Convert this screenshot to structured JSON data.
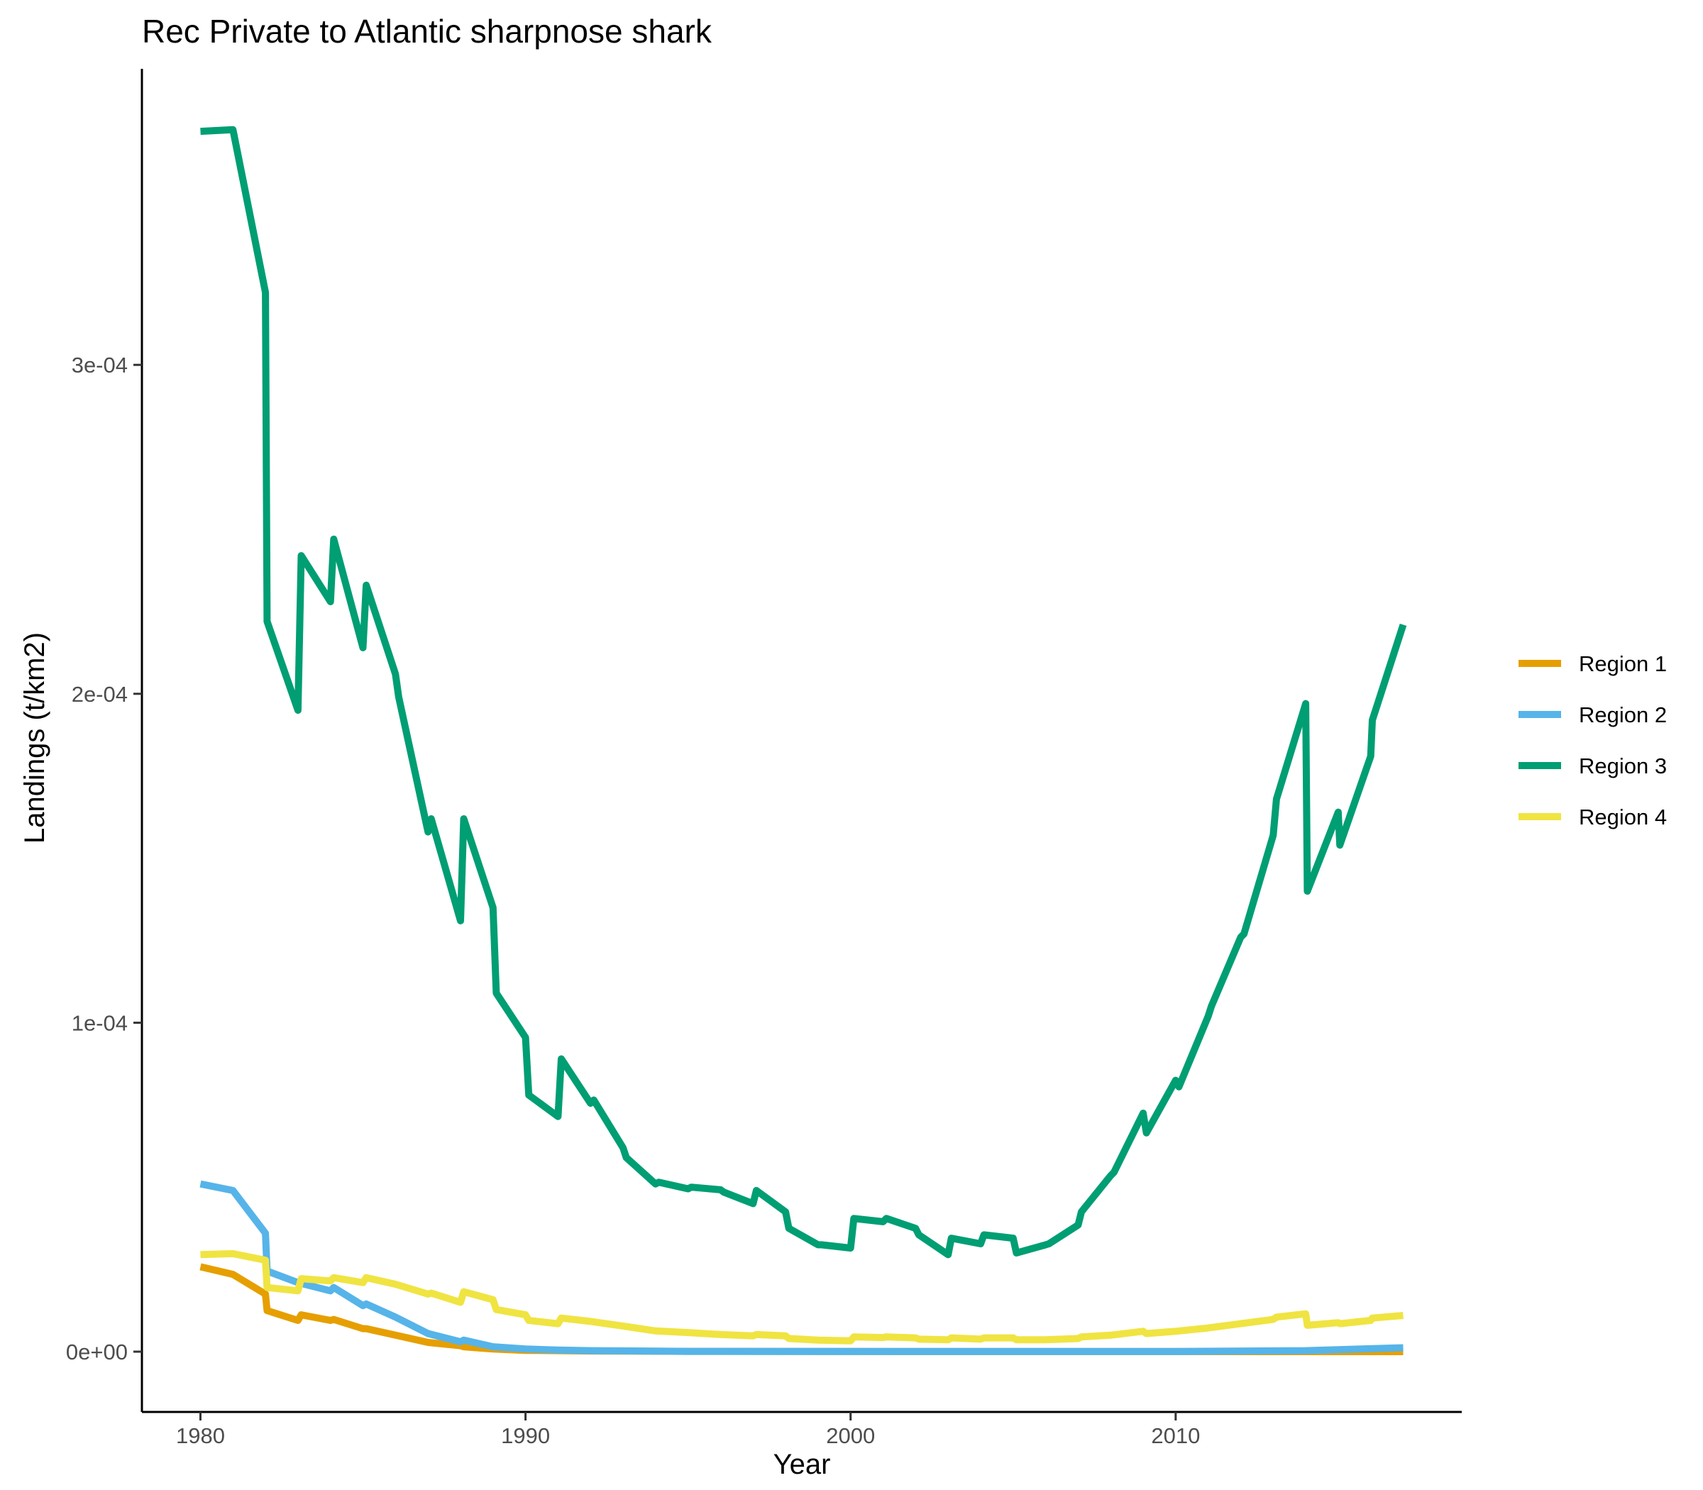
{
  "chart_data": {
    "type": "line",
    "title": "Rec Private to Atlantic sharpnose shark",
    "xlabel": "Year",
    "ylabel": "Landings (t/km2)",
    "xlim": [
      1978.2,
      2018.8
    ],
    "ylim": [
      -1.833e-05,
      0.00039
    ],
    "x_ticks": [
      1980,
      1990,
      2000,
      2010
    ],
    "x_tick_labels": [
      "1980",
      "1990",
      "2000",
      "2010"
    ],
    "y_ticks": [
      0,
      0.0001,
      0.0002,
      0.0003
    ],
    "y_tick_labels": [
      "0e+00",
      "1e-04",
      "2e-04",
      "3e-04"
    ],
    "grid": false,
    "legend_position": "right",
    "series": [
      {
        "name": "Region 1",
        "color": "#E69F00",
        "points": [
          [
            1980,
            2.58e-05
          ],
          [
            1981,
            2.35e-05
          ],
          [
            1982,
            1.75e-05
          ],
          [
            1982.05,
            1.25e-05
          ],
          [
            1983,
            9.5e-06
          ],
          [
            1983.1,
            1.12e-05
          ],
          [
            1984,
            9.5e-06
          ],
          [
            1984.1,
            9.8e-06
          ],
          [
            1985,
            7e-06
          ],
          [
            1985.1,
            7e-06
          ],
          [
            1986,
            5e-06
          ],
          [
            1987,
            2.8e-06
          ],
          [
            1988,
            1.8e-06
          ],
          [
            1988.1,
            1.5e-06
          ],
          [
            1989,
            8e-07
          ],
          [
            1990,
            4e-07
          ],
          [
            1991,
            3e-07
          ],
          [
            1992,
            2e-07
          ],
          [
            1995,
            1e-07
          ],
          [
            2000,
            5e-08
          ],
          [
            2010,
            2e-08
          ],
          [
            2017,
            1e-08
          ]
        ]
      },
      {
        "name": "Region 2",
        "color": "#56B4E9",
        "points": [
          [
            1980,
            5.1e-05
          ],
          [
            1981,
            4.9e-05
          ],
          [
            1982,
            3.6e-05
          ],
          [
            1982.05,
            2.45e-05
          ],
          [
            1983,
            2.1e-05
          ],
          [
            1984,
            1.85e-05
          ],
          [
            1984.1,
            1.95e-05
          ],
          [
            1985,
            1.4e-05
          ],
          [
            1985.1,
            1.45e-05
          ],
          [
            1986,
            1.05e-05
          ],
          [
            1987,
            5.5e-06
          ],
          [
            1988,
            3e-06
          ],
          [
            1988.1,
            3.5e-06
          ],
          [
            1989,
            1.5e-06
          ],
          [
            1990,
            8e-07
          ],
          [
            1991,
            5e-07
          ],
          [
            1992,
            3e-07
          ],
          [
            1995,
            1e-07
          ],
          [
            2000,
            5e-08
          ],
          [
            2010,
            5e-08
          ],
          [
            2014,
            3e-07
          ],
          [
            2017,
            1.2e-06
          ]
        ]
      },
      {
        "name": "Region 3",
        "color": "#009E73",
        "points": [
          [
            1980,
            0.000371
          ],
          [
            1981,
            0.0003715
          ],
          [
            1982,
            0.000322
          ],
          [
            1982.05,
            0.000222
          ],
          [
            1983,
            0.000195
          ],
          [
            1983.1,
            0.000242
          ],
          [
            1984,
            0.000228
          ],
          [
            1984.1,
            0.000247
          ],
          [
            1985,
            0.000214
          ],
          [
            1985.1,
            0.000233
          ],
          [
            1986,
            0.000206
          ],
          [
            1986.1,
            0.000199
          ],
          [
            1987,
            0.000158
          ],
          [
            1987.1,
            0.000162
          ],
          [
            1988,
            0.000131
          ],
          [
            1988.1,
            0.000162
          ],
          [
            1989,
            0.000135
          ],
          [
            1989.1,
            0.000109
          ],
          [
            1990,
            9.55e-05
          ],
          [
            1990.1,
            7.8e-05
          ],
          [
            1991,
            7.15e-05
          ],
          [
            1991.1,
            8.9e-05
          ],
          [
            1992,
            7.55e-05
          ],
          [
            1992.1,
            7.65e-05
          ],
          [
            1993,
            6.2e-05
          ],
          [
            1993.1,
            5.9e-05
          ],
          [
            1994,
            5.1e-05
          ],
          [
            1994.1,
            5.15e-05
          ],
          [
            1995,
            4.95e-05
          ],
          [
            1995.1,
            5e-05
          ],
          [
            1996,
            4.92e-05
          ],
          [
            1996.1,
            4.85e-05
          ],
          [
            1997,
            4.5e-05
          ],
          [
            1997.1,
            4.9e-05
          ],
          [
            1998,
            4.25e-05
          ],
          [
            1998.1,
            3.75e-05
          ],
          [
            1999,
            3.25e-05
          ],
          [
            1999.1,
            3.25e-05
          ],
          [
            2000,
            3.15e-05
          ],
          [
            2000.1,
            4.05e-05
          ],
          [
            2001,
            3.95e-05
          ],
          [
            2001.1,
            4.05e-05
          ],
          [
            2002,
            3.75e-05
          ],
          [
            2002.1,
            3.55e-05
          ],
          [
            2003,
            2.95e-05
          ],
          [
            2003.1,
            3.45e-05
          ],
          [
            2004,
            3.28e-05
          ],
          [
            2004.1,
            3.55e-05
          ],
          [
            2005,
            3.45e-05
          ],
          [
            2005.1,
            3e-05
          ],
          [
            2006,
            3.25e-05
          ],
          [
            2006.1,
            3.28e-05
          ],
          [
            2007,
            3.85e-05
          ],
          [
            2007.1,
            4.25e-05
          ],
          [
            2008,
            5.35e-05
          ],
          [
            2008.1,
            5.45e-05
          ],
          [
            2009,
            7.25e-05
          ],
          [
            2009.1,
            6.65e-05
          ],
          [
            2010,
            8.25e-05
          ],
          [
            2010.1,
            8.05e-05
          ],
          [
            2011,
            0.000102
          ],
          [
            2011.1,
            0.000105
          ],
          [
            2012,
            0.000126
          ],
          [
            2012.1,
            0.000127
          ],
          [
            2013,
            0.000157
          ],
          [
            2013.1,
            0.000168
          ],
          [
            2014,
            0.000197
          ],
          [
            2014.05,
            0.00014
          ],
          [
            2015,
            0.000164
          ],
          [
            2015.05,
            0.000154
          ],
          [
            2016,
            0.000181
          ],
          [
            2016.05,
            0.000192
          ],
          [
            2017,
            0.000221
          ]
        ]
      },
      {
        "name": "Region 4",
        "color": "#F0E442",
        "points": [
          [
            1980,
            2.95e-05
          ],
          [
            1981,
            2.98e-05
          ],
          [
            1982,
            2.78e-05
          ],
          [
            1982.05,
            1.95e-05
          ],
          [
            1983,
            1.85e-05
          ],
          [
            1983.1,
            2.22e-05
          ],
          [
            1984,
            2.15e-05
          ],
          [
            1984.1,
            2.25e-05
          ],
          [
            1985,
            2.1e-05
          ],
          [
            1985.1,
            2.25e-05
          ],
          [
            1986,
            2.05e-05
          ],
          [
            1986.1,
            2.02e-05
          ],
          [
            1987,
            1.75e-05
          ],
          [
            1987.1,
            1.78e-05
          ],
          [
            1988,
            1.5e-05
          ],
          [
            1988.1,
            1.82e-05
          ],
          [
            1989,
            1.58e-05
          ],
          [
            1989.1,
            1.28e-05
          ],
          [
            1990,
            1.12e-05
          ],
          [
            1990.1,
            9.5e-06
          ],
          [
            1991,
            8.5e-06
          ],
          [
            1991.1,
            1.02e-05
          ],
          [
            1992,
            9.2e-06
          ],
          [
            1993,
            7.8e-06
          ],
          [
            1994,
            6.3e-06
          ],
          [
            1995,
            5.8e-06
          ],
          [
            1996,
            5.2e-06
          ],
          [
            1997,
            4.8e-06
          ],
          [
            1997.1,
            5.2e-06
          ],
          [
            1998,
            4.8e-06
          ],
          [
            1998.1,
            4e-06
          ],
          [
            1999,
            3.5e-06
          ],
          [
            2000,
            3.3e-06
          ],
          [
            2000.1,
            4.5e-06
          ],
          [
            2001,
            4.3e-06
          ],
          [
            2001.1,
            4.5e-06
          ],
          [
            2002,
            4.2e-06
          ],
          [
            2002.1,
            3.8e-06
          ],
          [
            2003,
            3.6e-06
          ],
          [
            2003.1,
            4.2e-06
          ],
          [
            2004,
            3.8e-06
          ],
          [
            2004.1,
            4.2e-06
          ],
          [
            2005,
            4.2e-06
          ],
          [
            2005.1,
            3.6e-06
          ],
          [
            2006,
            3.6e-06
          ],
          [
            2007,
            4e-06
          ],
          [
            2007.1,
            4.5e-06
          ],
          [
            2008,
            5e-06
          ],
          [
            2009,
            6.2e-06
          ],
          [
            2009.1,
            5.5e-06
          ],
          [
            2010,
            6.2e-06
          ],
          [
            2011,
            7.2e-06
          ],
          [
            2012,
            8.5e-06
          ],
          [
            2013,
            9.8e-06
          ],
          [
            2013.1,
            1.05e-05
          ],
          [
            2014,
            1.15e-05
          ],
          [
            2014.05,
            8e-06
          ],
          [
            2015,
            8.8e-06
          ],
          [
            2015.05,
            8.5e-06
          ],
          [
            2016,
            9.5e-06
          ],
          [
            2016.05,
            1.02e-05
          ],
          [
            2017,
            1.1e-05
          ]
        ]
      }
    ]
  }
}
